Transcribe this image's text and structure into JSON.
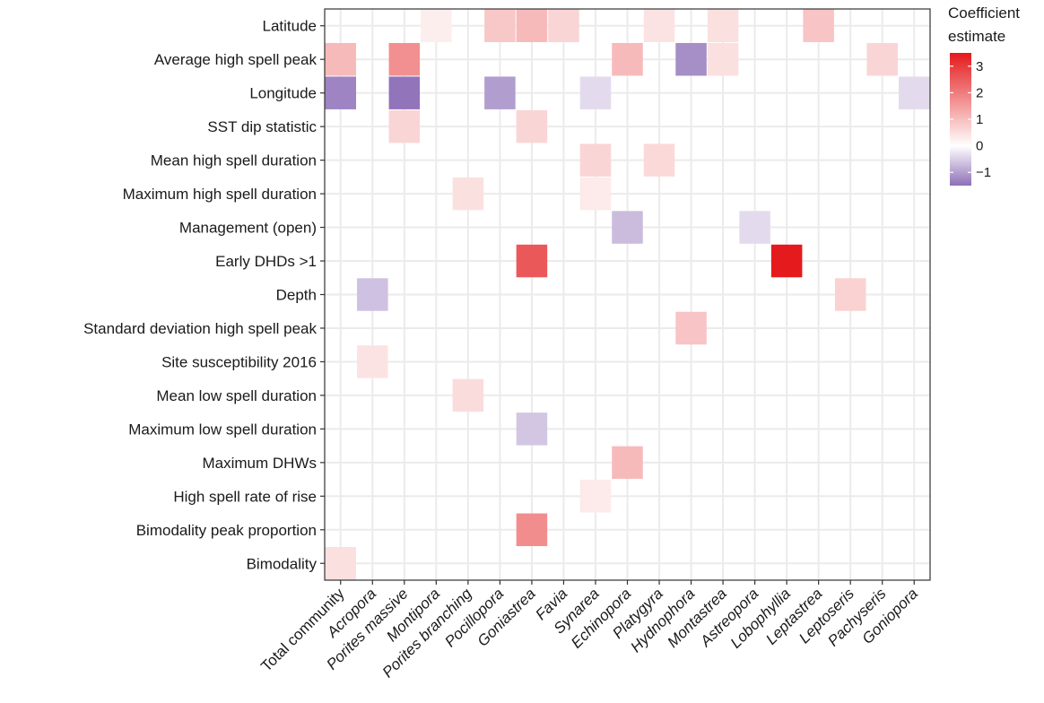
{
  "chart_data": {
    "type": "heatmap",
    "x_categories": [
      {
        "label": "Total community",
        "italic": false
      },
      {
        "label": "Acropora",
        "italic": true
      },
      {
        "label": "Porites massive",
        "italic": true
      },
      {
        "label": "Montipora",
        "italic": true
      },
      {
        "label": "Porites branching",
        "italic": true
      },
      {
        "label": "Pocillopora",
        "italic": true
      },
      {
        "label": "Goniastrea",
        "italic": true
      },
      {
        "label": "Favia",
        "italic": true
      },
      {
        "label": "Synarea",
        "italic": true
      },
      {
        "label": "Echinopora",
        "italic": true
      },
      {
        "label": "Platygyra",
        "italic": true
      },
      {
        "label": "Hydnophora",
        "italic": true
      },
      {
        "label": "Montastrea",
        "italic": true
      },
      {
        "label": "Astreopora",
        "italic": true
      },
      {
        "label": "Lobophyllia",
        "italic": true
      },
      {
        "label": "Leptastrea",
        "italic": true
      },
      {
        "label": "Leptoseris",
        "italic": true
      },
      {
        "label": "Pachyseris",
        "italic": true
      },
      {
        "label": "Goniopora",
        "italic": true
      }
    ],
    "y_categories": [
      "Latitude",
      "Average high spell peak",
      "Longitude",
      "SST dip statistic",
      "Mean high spell duration",
      "Maximum high spell duration",
      "Management (open)",
      "Early DHDs >1",
      "Depth",
      "Standard deviation high spell peak",
      "Site susceptibility 2016",
      "Mean low spell duration",
      "Maximum low spell duration",
      "Maximum DHWs",
      "High spell rate of rise",
      "Bimodality peak proportion",
      "Bimodality"
    ],
    "cells": [
      {
        "y": "Latitude",
        "x": "Montipora",
        "value": 0.25
      },
      {
        "y": "Latitude",
        "x": "Pocillopora",
        "value": 0.8
      },
      {
        "y": "Latitude",
        "x": "Goniastrea",
        "value": 1.0
      },
      {
        "y": "Latitude",
        "x": "Favia",
        "value": 0.6
      },
      {
        "y": "Latitude",
        "x": "Platygyra",
        "value": 0.4
      },
      {
        "y": "Latitude",
        "x": "Montastrea",
        "value": 0.45
      },
      {
        "y": "Latitude",
        "x": "Leptastrea",
        "value": 0.85
      },
      {
        "y": "Average high spell peak",
        "x": "Total community",
        "value": 1.0
      },
      {
        "y": "Average high spell peak",
        "x": "Porites massive",
        "value": 1.6
      },
      {
        "y": "Average high spell peak",
        "x": "Echinopora",
        "value": 1.0
      },
      {
        "y": "Average high spell peak",
        "x": "Hydnophora",
        "value": -1.1
      },
      {
        "y": "Average high spell peak",
        "x": "Montastrea",
        "value": 0.45
      },
      {
        "y": "Average high spell peak",
        "x": "Pachyseris",
        "value": 0.6
      },
      {
        "y": "Longitude",
        "x": "Total community",
        "value": -1.2
      },
      {
        "y": "Longitude",
        "x": "Porites massive",
        "value": -1.35
      },
      {
        "y": "Longitude",
        "x": "Pocillopora",
        "value": -0.95
      },
      {
        "y": "Longitude",
        "x": "Synarea",
        "value": -0.35
      },
      {
        "y": "Longitude",
        "x": "Goniopora",
        "value": -0.35
      },
      {
        "y": "SST dip statistic",
        "x": "Porites massive",
        "value": 0.6
      },
      {
        "y": "SST dip statistic",
        "x": "Goniastrea",
        "value": 0.6
      },
      {
        "y": "Mean high spell duration",
        "x": "Synarea",
        "value": 0.6
      },
      {
        "y": "Mean high spell duration",
        "x": "Platygyra",
        "value": 0.55
      },
      {
        "y": "Maximum high spell duration",
        "x": "Porites branching",
        "value": 0.45
      },
      {
        "y": "Maximum high spell duration",
        "x": "Synarea",
        "value": 0.3
      },
      {
        "y": "Management (open)",
        "x": "Echinopora",
        "value": -0.65
      },
      {
        "y": "Management (open)",
        "x": "Astreopora",
        "value": -0.35
      },
      {
        "y": "Early DHDs >1",
        "x": "Goniastrea",
        "value": 2.4
      },
      {
        "y": "Early DHDs >1",
        "x": "Lobophyllia",
        "value": 3.3
      },
      {
        "y": "Depth",
        "x": "Acropora",
        "value": -0.6
      },
      {
        "y": "Depth",
        "x": "Leptoseris",
        "value": 0.65
      },
      {
        "y": "Standard deviation high spell peak",
        "x": "Hydnophora",
        "value": 0.85
      },
      {
        "y": "Site susceptibility 2016",
        "x": "Acropora",
        "value": 0.4
      },
      {
        "y": "Mean low spell duration",
        "x": "Porites branching",
        "value": 0.5
      },
      {
        "y": "Maximum low spell duration",
        "x": "Goniastrea",
        "value": -0.55
      },
      {
        "y": "Maximum DHWs",
        "x": "Echinopora",
        "value": 1.0
      },
      {
        "y": "High spell rate of rise",
        "x": "Synarea",
        "value": 0.3
      },
      {
        "y": "Bimodality peak proportion",
        "x": "Goniastrea",
        "value": 1.65
      },
      {
        "y": "Bimodality",
        "x": "Total community",
        "value": 0.45
      }
    ],
    "legend": {
      "title_line1": "Coefficient",
      "title_line2": "estimate",
      "ticks": [
        {
          "value": 3,
          "label": "3"
        },
        {
          "value": 2,
          "label": "2"
        },
        {
          "value": 1,
          "label": "1"
        },
        {
          "value": 0,
          "label": "0"
        },
        {
          "value": -1,
          "label": "−1"
        }
      ],
      "range": [
        -1.5,
        3.5
      ],
      "placement": "right"
    },
    "colors": {
      "low": "#8e6fb8",
      "mid": "#ffffff",
      "high": "#e41a1c",
      "grid": "#ebebeb",
      "panel_border": "#333333"
    },
    "grid": true
  }
}
